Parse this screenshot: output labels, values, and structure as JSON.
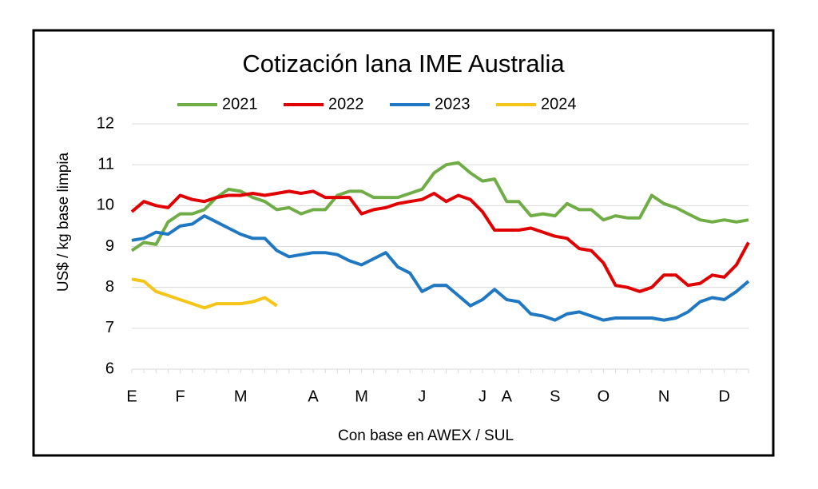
{
  "chart_data": {
    "type": "line",
    "title": "Cotización lana IME Australia",
    "y_label": "US$ / kg base limpia",
    "x_label": "Con base en AWEX / SUL",
    "categories": [
      "E",
      null,
      null,
      null,
      "F",
      null,
      null,
      null,
      null,
      "M",
      null,
      null,
      null,
      null,
      null,
      "A",
      null,
      null,
      null,
      "M",
      null,
      null,
      null,
      null,
      "J",
      null,
      null,
      null,
      null,
      "J",
      null,
      "A",
      null,
      null,
      null,
      "S",
      null,
      null,
      null,
      "O",
      null,
      null,
      null,
      null,
      "N",
      null,
      null,
      null,
      null,
      "D",
      null,
      null
    ],
    "ylim": [
      6,
      12
    ],
    "yticks": [
      6,
      7,
      8,
      9,
      10,
      11,
      12
    ],
    "grid": true,
    "legend": "top",
    "series": [
      {
        "name": "2021",
        "color": "#70ad47",
        "values": [
          8.9,
          9.1,
          9.05,
          9.6,
          9.8,
          9.8,
          9.9,
          10.2,
          10.4,
          10.35,
          10.2,
          10.1,
          9.9,
          9.95,
          9.8,
          9.9,
          9.9,
          10.25,
          10.35,
          10.35,
          10.2,
          10.2,
          10.2,
          10.3,
          10.4,
          10.8,
          11.0,
          11.05,
          10.8,
          10.6,
          10.65,
          10.1,
          10.1,
          9.75,
          9.8,
          9.75,
          10.05,
          9.9,
          9.9,
          9.65,
          9.75,
          9.7,
          9.7,
          10.25,
          10.05,
          9.95,
          9.8,
          9.65,
          9.6,
          9.65,
          9.6,
          9.65
        ]
      },
      {
        "name": "2022",
        "color": "#e00000",
        "values": [
          9.85,
          10.1,
          10.0,
          9.95,
          10.25,
          10.15,
          10.1,
          10.2,
          10.25,
          10.25,
          10.3,
          10.25,
          10.3,
          10.35,
          10.3,
          10.35,
          10.2,
          10.2,
          10.2,
          9.8,
          9.9,
          9.95,
          10.05,
          10.1,
          10.15,
          10.3,
          10.1,
          10.25,
          10.15,
          9.85,
          9.4,
          9.4,
          9.4,
          9.45,
          9.35,
          9.25,
          9.2,
          8.95,
          8.9,
          8.6,
          8.05,
          8.0,
          7.9,
          8.0,
          8.3,
          8.3,
          8.05,
          8.1,
          8.3,
          8.25,
          8.55,
          9.1
        ]
      },
      {
        "name": "2023",
        "color": "#1f78c1",
        "values": [
          9.15,
          9.2,
          9.35,
          9.3,
          9.5,
          9.55,
          9.75,
          9.6,
          9.45,
          9.3,
          9.2,
          9.2,
          8.9,
          8.75,
          8.8,
          8.85,
          8.85,
          8.8,
          8.65,
          8.55,
          8.7,
          8.85,
          8.5,
          8.35,
          7.9,
          8.05,
          8.05,
          7.8,
          7.55,
          7.7,
          7.95,
          7.7,
          7.65,
          7.35,
          7.3,
          7.2,
          7.35,
          7.4,
          7.3,
          7.2,
          7.25,
          7.25,
          7.25,
          7.25,
          7.2,
          7.25,
          7.4,
          7.65,
          7.75,
          7.7,
          7.9,
          8.15
        ]
      },
      {
        "name": "2024",
        "color": "#f5c518",
        "values": [
          8.2,
          8.15,
          7.9,
          7.8,
          7.7,
          7.6,
          7.5,
          7.6,
          7.6,
          7.6,
          7.65,
          7.75,
          7.55,
          null,
          null,
          null,
          null,
          null,
          null,
          null,
          null,
          null,
          null,
          null,
          null,
          null,
          null,
          null,
          null,
          null,
          null,
          null,
          null,
          null,
          null,
          null,
          null,
          null,
          null,
          null,
          null,
          null,
          null,
          null,
          null,
          null,
          null,
          null,
          null,
          null,
          null,
          null
        ]
      }
    ]
  }
}
